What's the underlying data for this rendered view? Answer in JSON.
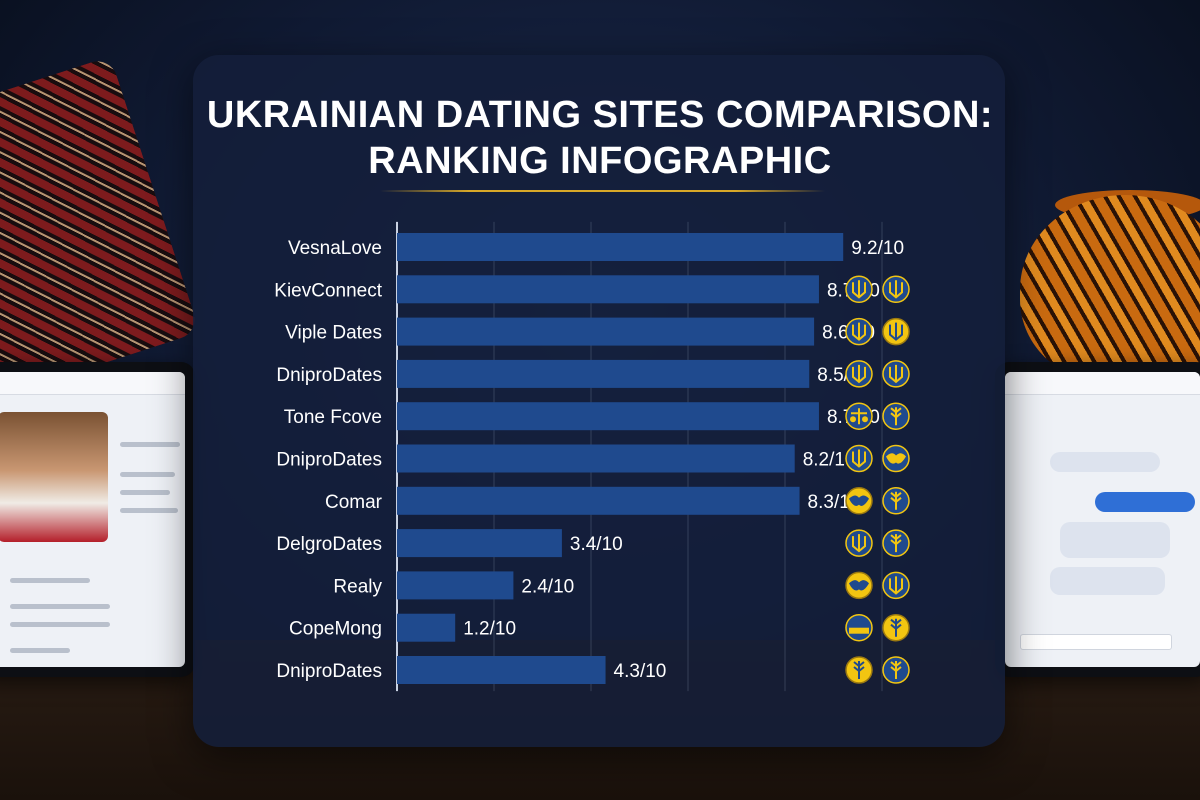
{
  "chart_data": {
    "type": "bar",
    "orientation": "horizontal",
    "title": "UKRAINIAN DATING SITES COMPARISON: RANKING INFOGRAPHIC",
    "title_lines": [
      "UKRAINIAN DATING SITES COMPARISON:",
      "RANKING INFOGRAPHIC"
    ],
    "categories": [
      "VesnaLove",
      "KievConnect",
      "Viple Dates",
      "DniproDates",
      "Tone Fcove",
      "DniproDates",
      "Comar",
      "DelgroDates",
      "Realy",
      "CopeMong",
      "DniproDates"
    ],
    "values": [
      9.2,
      8.7,
      8.6,
      8.5,
      8.7,
      8.2,
      8.3,
      3.4,
      2.4,
      1.2,
      4.3
    ],
    "value_labels": [
      "9.2/10",
      "8.7/10",
      "8.6/10",
      "8.5/10",
      "8.7/10",
      "8.2/10",
      "8.3/10",
      "3.4/10",
      "2.4/10",
      "1.2/10",
      "4.3/10"
    ],
    "xlim": [
      0,
      10
    ],
    "grid": true,
    "bar_color": "#1f4a8e",
    "icons": [
      [],
      [
        "trident-icon",
        "trident-icon"
      ],
      [
        "trident-icon",
        "trident-gold-icon"
      ],
      [
        "trident-icon",
        "trident-icon"
      ],
      [
        "scales-icon",
        "wheat-icon"
      ],
      [
        "trident-icon",
        "map-icon"
      ],
      [
        "map-gold-icon",
        "wheat-icon"
      ],
      [
        "trident-icon",
        "wheat-icon"
      ],
      [
        "map-gold-icon",
        "trident-icon"
      ],
      [
        "flag-icon",
        "wheat-gold-icon"
      ],
      [
        "wheat-gold-icon",
        "wheat-icon"
      ]
    ]
  },
  "colors": {
    "accent_gold": "#d8a828",
    "icon_blue": "#1f4a8e",
    "icon_yellow": "#f2c511"
  }
}
